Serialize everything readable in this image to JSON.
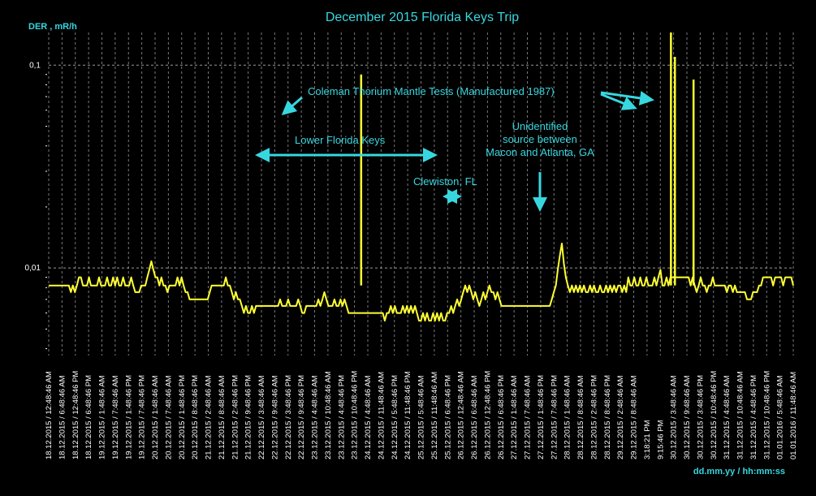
{
  "chart_data": {
    "type": "line",
    "title": "December 2015 Florida Keys Trip",
    "ylabel": "DER , mR/h",
    "xlabel": "dd.mm.yy / hh:mm:ss",
    "y_scale": "log",
    "ylim": [
      0.0037,
      0.145
    ],
    "y_ticks": [
      {
        "value": 0.01,
        "label": "0,01"
      },
      {
        "value": 0.1,
        "label": "0,1"
      }
    ],
    "line_color": "#ffff33",
    "accent_color": "#37d7e0",
    "x_tick_labels": [
      "18.12.2015 / 12:48:46 AM",
      "18.12.2015 / 6:48:46 AM",
      "18.12.2015 / 12:48:46 PM",
      "18.12.2015 / 6:48:46 PM",
      "19.12.2015 / 1:48:46 AM",
      "19.12.2015 / 7:48:46 AM",
      "19.12.2015 / 1:48:46 PM",
      "19.12.2015 / 7:48:46 PM",
      "20.12.2015 / 1:48:46 AM",
      "20.12.2015 / 7:48:46 AM",
      "20.12.2015 / 1:48:46 PM",
      "20.12.2015 / 8:48:46 PM",
      "21.12.2015 / 2:48:46 AM",
      "21.12.2015 / 8:48:46 AM",
      "21.12.2015 / 2:48:46 PM",
      "21.12.2015 / 9:48:46 PM",
      "22.12.2015 / 3:48:46 AM",
      "22.12.2015 / 9:48:46 AM",
      "22.12.2015 / 3:48:46 PM",
      "22.12.2015 / 9:48:46 PM",
      "23.12.2015 / 4:48:46 AM",
      "23.12.2015 / 10:48:46 AM",
      "23.12.2015 / 4:48:46 PM",
      "23.12.2015 / 10:48:46 PM",
      "24.12.2015 / 4:48:46 AM",
      "24.12.2015 / 11:48:46 AM",
      "24.12.2015 / 5:48:46 PM",
      "24.12.2015 / 11:48:46 PM",
      "25.12.2015 / 5:48:46 AM",
      "25.12.2015 / 11:48:46 AM",
      "25.12.2015 / 6:48:46 PM",
      "26.12.2015 / 12:48:46 AM",
      "26.12.2015 / 6:48:46 AM",
      "26.12.2015 / 12:48:46 PM",
      "26.12.2015 / 6:48:46 PM",
      "27.12.2015 / 1:48:46 AM",
      "27.12.2015 / 7:48:46 AM",
      "27.12.2015 / 1:48:46 PM",
      "27.12.2015 / 7:48:46 PM",
      "28.12.2015 / 1:48:46 AM",
      "28.12.2015 / 8:48:46 AM",
      "28.12.2015 / 2:48:46 PM",
      "28.12.2015 / 8:48:46 PM",
      "29.12.2015 / 2:48:46 AM",
      "29.12.2015 / 8:48:46 AM",
      "3:18:21 PM",
      "9:15:46 PM",
      "30.12.2015 / 3:48:46 AM",
      "30.12.2015 / 9:48:46 AM",
      "30.12.2015 / 3:48:46 PM",
      "30.12.2015 / 10:48:46 PM",
      "31.12.2015 / 4:48:46 AM",
      "31.12.2015 / 10:48:46 AM",
      "31.12.2015 / 4:48:46 PM",
      "31.12.2015 / 10:48:46 PM",
      "01.01.2016 / 5:48:46 AM",
      "01.01.2016 / 11:48:46 AM"
    ],
    "series": [
      {
        "y": [
          0.0082,
          0.0082,
          0.0082,
          0.0082,
          0.0082,
          0.0082,
          0.0082,
          0.0082,
          0.0082,
          0.0082,
          0.0082,
          0.0076,
          0.0082,
          0.0076,
          0.0082,
          0.009,
          0.009,
          0.0082,
          0.0082,
          0.0082,
          0.009,
          0.0082,
          0.0082,
          0.0082,
          0.0082,
          0.009,
          0.0082,
          0.0082,
          0.0082,
          0.009,
          0.0082,
          0.0082,
          0.009,
          0.0082,
          0.009,
          0.0082,
          0.0082,
          0.009,
          0.0082,
          0.0082,
          0.0082,
          0.009,
          0.0082,
          0.0076,
          0.0076,
          0.0076,
          0.0082,
          0.0082,
          0.0082,
          0.009,
          0.0098,
          0.0108,
          0.0098,
          0.009,
          0.009,
          0.0082,
          0.009,
          0.0082,
          0.0082,
          0.0076,
          0.0082,
          0.0082,
          0.0082,
          0.0082,
          0.009,
          0.0082,
          0.009,
          0.0082,
          0.0076,
          0.0076,
          0.007,
          0.007,
          0.007,
          0.007,
          0.007,
          0.007,
          0.007,
          0.007,
          0.007,
          0.007,
          0.0076,
          0.0082,
          0.0082,
          0.0082,
          0.0082,
          0.0082,
          0.0082,
          0.0082,
          0.009,
          0.0082,
          0.0082,
          0.0076,
          0.007,
          0.0076,
          0.007,
          0.007,
          0.0065,
          0.006,
          0.0065,
          0.006,
          0.006,
          0.0065,
          0.006,
          0.0065,
          0.0065,
          0.0065,
          0.0065,
          0.0065,
          0.0065,
          0.0065,
          0.0065,
          0.0065,
          0.0065,
          0.0065,
          0.0065,
          0.007,
          0.0065,
          0.0065,
          0.0065,
          0.007,
          0.0065,
          0.0065,
          0.0065,
          0.0065,
          0.007,
          0.0065,
          0.006,
          0.006,
          0.0065,
          0.0065,
          0.0065,
          0.0065,
          0.0065,
          0.0065,
          0.007,
          0.0065,
          0.007,
          0.0076,
          0.007,
          0.0065,
          0.0065,
          0.0065,
          0.007,
          0.0065,
          0.0065,
          0.007,
          0.0065,
          0.007,
          0.0065,
          0.006,
          0.006,
          0.006,
          0.006,
          0.006,
          0.006,
          0.006,
          0.006,
          0.006,
          0.006,
          0.006,
          0.006,
          0.006,
          0.006,
          0.006,
          0.006,
          0.006,
          0.006,
          0.0055,
          0.006,
          0.006,
          0.0065,
          0.006,
          0.0065,
          0.006,
          0.006,
          0.006,
          0.0065,
          0.006,
          0.0065,
          0.006,
          0.0065,
          0.006,
          0.0065,
          0.006,
          0.0055,
          0.0055,
          0.006,
          0.0055,
          0.006,
          0.0055,
          0.0055,
          0.006,
          0.0055,
          0.006,
          0.0055,
          0.006,
          0.0055,
          0.0055,
          0.006,
          0.006,
          0.0065,
          0.006,
          0.0065,
          0.007,
          0.0065,
          0.007,
          0.0076,
          0.0082,
          0.0076,
          0.0082,
          0.0076,
          0.007,
          0.0076,
          0.007,
          0.0065,
          0.007,
          0.0076,
          0.007,
          0.0076,
          0.0082,
          0.0076,
          0.0076,
          0.007,
          0.0076,
          0.007,
          0.0065,
          0.0065,
          0.0065,
          0.0065,
          0.0065,
          0.0065,
          0.0065,
          0.0065,
          0.0065,
          0.0065,
          0.0065,
          0.0065,
          0.0065,
          0.0065,
          0.0065,
          0.0065,
          0.0065,
          0.0065,
          0.0065,
          0.0065,
          0.0065,
          0.0065,
          0.0065,
          0.0065,
          0.0065,
          0.007,
          0.0076,
          0.0082,
          0.0098,
          0.0115,
          0.0132,
          0.0105,
          0.009,
          0.0082,
          0.0076,
          0.0082,
          0.0076,
          0.0082,
          0.0076,
          0.0082,
          0.0076,
          0.0082,
          0.0076,
          0.0076,
          0.0082,
          0.0076,
          0.0082,
          0.0076,
          0.0076,
          0.0082,
          0.0076,
          0.0076,
          0.0082,
          0.0076,
          0.0082,
          0.0076,
          0.0082,
          0.0076,
          0.0082,
          0.0082,
          0.0076,
          0.0082,
          0.0076,
          0.009,
          0.0082,
          0.0082,
          0.009,
          0.0082,
          0.0082,
          0.009,
          0.0082,
          0.0082,
          0.009,
          0.0082,
          0.0082,
          0.0082,
          0.009,
          0.0082,
          0.009,
          0.0098,
          0.0082,
          0.0082,
          0.009,
          0.0082,
          0.009,
          0.009,
          0.009,
          0.009,
          0.009,
          0.009,
          0.009,
          0.009,
          0.009,
          0.009,
          0.0082,
          0.009,
          0.0082,
          0.0076,
          0.0082,
          0.009,
          0.0082,
          0.0082,
          0.0076,
          0.0082,
          0.0082,
          0.009,
          0.0082,
          0.0082,
          0.0082,
          0.0082,
          0.0082,
          0.0082,
          0.0076,
          0.0082,
          0.0082,
          0.0076,
          0.0082,
          0.0076,
          0.0076,
          0.0076,
          0.0076,
          0.0076,
          0.007,
          0.007,
          0.007,
          0.0076,
          0.0076,
          0.0076,
          0.0082,
          0.0082,
          0.009,
          0.009,
          0.009,
          0.009,
          0.009,
          0.0082,
          0.009,
          0.009,
          0.009,
          0.009,
          0.0082,
          0.009,
          0.009,
          0.009,
          0.009,
          0.0082
        ],
        "spikes": [
          {
            "x_index": 23.5,
            "y": 0.09
          },
          {
            "x_index": 46.8,
            "y": 0.145
          },
          {
            "x_index": 47.1,
            "y": 0.11
          },
          {
            "x_index": 48.5,
            "y": 0.085
          }
        ]
      }
    ],
    "annotations": [
      {
        "text": "Coleman Thorium Mantle Tests (Manufactured 1987)"
      },
      {
        "text": "Lower Florida Keys"
      },
      {
        "text": "Clewiston, FL"
      },
      {
        "text": "Unidentified"
      },
      {
        "text": "source between"
      },
      {
        "text": "Macon and Atlanta, GA"
      }
    ]
  }
}
